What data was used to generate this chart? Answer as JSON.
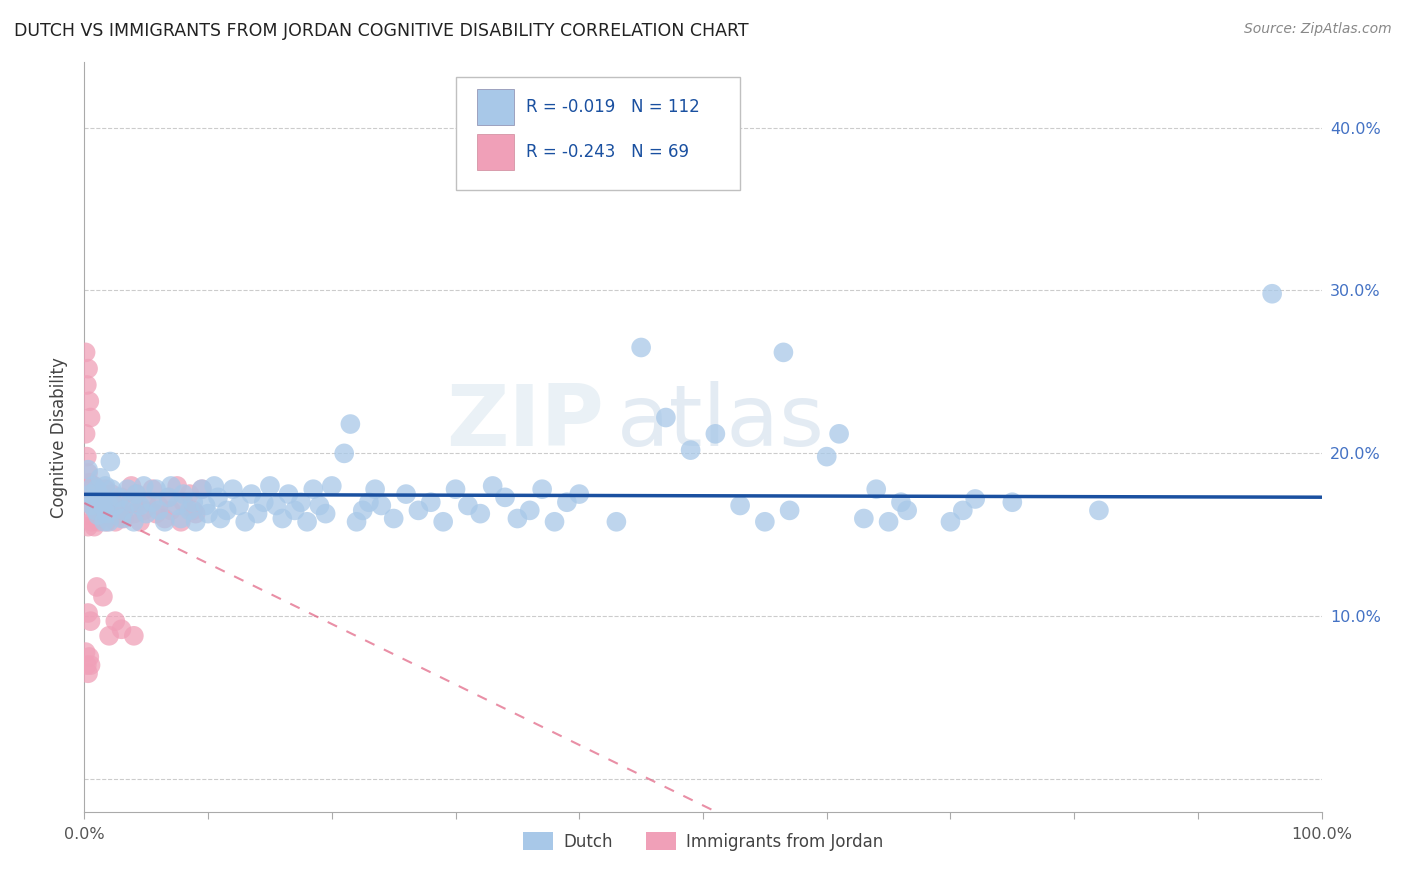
{
  "title": "DUTCH VS IMMIGRANTS FROM JORDAN COGNITIVE DISABILITY CORRELATION CHART",
  "source": "Source: ZipAtlas.com",
  "ylabel": "Cognitive Disability",
  "xlim": [
    0.0,
    1.0
  ],
  "ylim": [
    -0.02,
    0.44
  ],
  "yticks": [
    0.0,
    0.1,
    0.2,
    0.3,
    0.4
  ],
  "ytick_labels": [
    "",
    "10.0%",
    "20.0%",
    "30.0%",
    "40.0%"
  ],
  "xticks": [
    0.0,
    0.1,
    0.2,
    0.3,
    0.4,
    0.5,
    0.6,
    0.7,
    0.8,
    0.9,
    1.0
  ],
  "xtick_labels": [
    "0.0%",
    "",
    "",
    "",
    "",
    "",
    "",
    "",
    "",
    "",
    "100.0%"
  ],
  "dutch_color": "#a8c8e8",
  "jordan_color": "#f0a0b8",
  "dutch_line_color": "#1a50a0",
  "jordan_line_color": "#e06080",
  "legend_dutch_label": "Dutch",
  "legend_jordan_label": "Immigrants from Jordan",
  "R_dutch": -0.019,
  "N_dutch": 112,
  "R_jordan": -0.243,
  "N_jordan": 69,
  "watermark": "ZIPatlas",
  "dutch_points": [
    [
      0.003,
      0.19
    ],
    [
      0.005,
      0.175
    ],
    [
      0.006,
      0.168
    ],
    [
      0.007,
      0.18
    ],
    [
      0.008,
      0.172
    ],
    [
      0.009,
      0.165
    ],
    [
      0.01,
      0.178
    ],
    [
      0.011,
      0.162
    ],
    [
      0.012,
      0.17
    ],
    [
      0.013,
      0.185
    ],
    [
      0.014,
      0.173
    ],
    [
      0.015,
      0.168
    ],
    [
      0.016,
      0.158
    ],
    [
      0.017,
      0.18
    ],
    [
      0.018,
      0.163
    ],
    [
      0.019,
      0.17
    ],
    [
      0.02,
      0.158
    ],
    [
      0.021,
      0.195
    ],
    [
      0.022,
      0.178
    ],
    [
      0.025,
      0.168
    ],
    [
      0.028,
      0.173
    ],
    [
      0.03,
      0.16
    ],
    [
      0.032,
      0.165
    ],
    [
      0.035,
      0.178
    ],
    [
      0.038,
      0.17
    ],
    [
      0.04,
      0.158
    ],
    [
      0.042,
      0.175
    ],
    [
      0.045,
      0.168
    ],
    [
      0.048,
      0.18
    ],
    [
      0.05,
      0.163
    ],
    [
      0.055,
      0.17
    ],
    [
      0.058,
      0.178
    ],
    [
      0.06,
      0.165
    ],
    [
      0.065,
      0.158
    ],
    [
      0.068,
      0.173
    ],
    [
      0.07,
      0.18
    ],
    [
      0.075,
      0.168
    ],
    [
      0.078,
      0.16
    ],
    [
      0.08,
      0.175
    ],
    [
      0.085,
      0.165
    ],
    [
      0.088,
      0.17
    ],
    [
      0.09,
      0.158
    ],
    [
      0.095,
      0.178
    ],
    [
      0.098,
      0.168
    ],
    [
      0.1,
      0.163
    ],
    [
      0.105,
      0.18
    ],
    [
      0.108,
      0.173
    ],
    [
      0.11,
      0.16
    ],
    [
      0.115,
      0.165
    ],
    [
      0.12,
      0.178
    ],
    [
      0.125,
      0.168
    ],
    [
      0.13,
      0.158
    ],
    [
      0.135,
      0.175
    ],
    [
      0.14,
      0.163
    ],
    [
      0.145,
      0.17
    ],
    [
      0.15,
      0.18
    ],
    [
      0.155,
      0.168
    ],
    [
      0.16,
      0.16
    ],
    [
      0.165,
      0.175
    ],
    [
      0.17,
      0.165
    ],
    [
      0.175,
      0.17
    ],
    [
      0.18,
      0.158
    ],
    [
      0.185,
      0.178
    ],
    [
      0.19,
      0.168
    ],
    [
      0.195,
      0.163
    ],
    [
      0.2,
      0.18
    ],
    [
      0.21,
      0.2
    ],
    [
      0.215,
      0.218
    ],
    [
      0.22,
      0.158
    ],
    [
      0.225,
      0.165
    ],
    [
      0.23,
      0.17
    ],
    [
      0.235,
      0.178
    ],
    [
      0.24,
      0.168
    ],
    [
      0.25,
      0.16
    ],
    [
      0.26,
      0.175
    ],
    [
      0.27,
      0.165
    ],
    [
      0.28,
      0.17
    ],
    [
      0.29,
      0.158
    ],
    [
      0.3,
      0.178
    ],
    [
      0.31,
      0.168
    ],
    [
      0.32,
      0.163
    ],
    [
      0.33,
      0.18
    ],
    [
      0.34,
      0.173
    ],
    [
      0.35,
      0.16
    ],
    [
      0.36,
      0.165
    ],
    [
      0.37,
      0.178
    ],
    [
      0.38,
      0.158
    ],
    [
      0.39,
      0.17
    ],
    [
      0.4,
      0.175
    ],
    [
      0.43,
      0.158
    ],
    [
      0.45,
      0.265
    ],
    [
      0.47,
      0.222
    ],
    [
      0.49,
      0.202
    ],
    [
      0.51,
      0.212
    ],
    [
      0.53,
      0.168
    ],
    [
      0.55,
      0.158
    ],
    [
      0.565,
      0.262
    ],
    [
      0.57,
      0.165
    ],
    [
      0.6,
      0.198
    ],
    [
      0.61,
      0.212
    ],
    [
      0.63,
      0.16
    ],
    [
      0.64,
      0.178
    ],
    [
      0.65,
      0.158
    ],
    [
      0.66,
      0.17
    ],
    [
      0.665,
      0.165
    ],
    [
      0.7,
      0.158
    ],
    [
      0.71,
      0.165
    ],
    [
      0.72,
      0.172
    ],
    [
      0.75,
      0.17
    ],
    [
      0.82,
      0.165
    ],
    [
      0.96,
      0.298
    ]
  ],
  "jordan_points": [
    [
      0.001,
      0.262
    ],
    [
      0.002,
      0.242
    ],
    [
      0.003,
      0.252
    ],
    [
      0.004,
      0.232
    ],
    [
      0.005,
      0.222
    ],
    [
      0.001,
      0.212
    ],
    [
      0.002,
      0.198
    ],
    [
      0.003,
      0.188
    ],
    [
      0.004,
      0.182
    ],
    [
      0.005,
      0.178
    ],
    [
      0.006,
      0.172
    ],
    [
      0.007,
      0.168
    ],
    [
      0.008,
      0.18
    ],
    [
      0.009,
      0.17
    ],
    [
      0.01,
      0.165
    ],
    [
      0.011,
      0.158
    ],
    [
      0.012,
      0.162
    ],
    [
      0.013,
      0.16
    ],
    [
      0.014,
      0.167
    ],
    [
      0.015,
      0.175
    ],
    [
      0.016,
      0.17
    ],
    [
      0.017,
      0.178
    ],
    [
      0.018,
      0.158
    ],
    [
      0.019,
      0.165
    ],
    [
      0.02,
      0.172
    ],
    [
      0.021,
      0.162
    ],
    [
      0.022,
      0.175
    ],
    [
      0.023,
      0.168
    ],
    [
      0.025,
      0.158
    ],
    [
      0.028,
      0.165
    ],
    [
      0.03,
      0.173
    ],
    [
      0.032,
      0.16
    ],
    [
      0.035,
      0.168
    ],
    [
      0.038,
      0.18
    ],
    [
      0.04,
      0.163
    ],
    [
      0.042,
      0.175
    ],
    [
      0.045,
      0.158
    ],
    [
      0.048,
      0.165
    ],
    [
      0.05,
      0.17
    ],
    [
      0.055,
      0.178
    ],
    [
      0.058,
      0.163
    ],
    [
      0.06,
      0.168
    ],
    [
      0.065,
      0.16
    ],
    [
      0.068,
      0.173
    ],
    [
      0.07,
      0.165
    ],
    [
      0.075,
      0.18
    ],
    [
      0.078,
      0.158
    ],
    [
      0.08,
      0.17
    ],
    [
      0.085,
      0.175
    ],
    [
      0.088,
      0.165
    ],
    [
      0.09,
      0.163
    ],
    [
      0.095,
      0.178
    ],
    [
      0.01,
      0.118
    ],
    [
      0.015,
      0.112
    ],
    [
      0.003,
      0.102
    ],
    [
      0.005,
      0.097
    ],
    [
      0.02,
      0.088
    ],
    [
      0.025,
      0.097
    ],
    [
      0.03,
      0.092
    ],
    [
      0.04,
      0.088
    ],
    [
      0.001,
      0.078
    ],
    [
      0.002,
      0.07
    ],
    [
      0.003,
      0.065
    ],
    [
      0.004,
      0.075
    ],
    [
      0.005,
      0.07
    ],
    [
      0.003,
      0.155
    ],
    [
      0.004,
      0.162
    ],
    [
      0.006,
      0.158
    ],
    [
      0.007,
      0.168
    ],
    [
      0.008,
      0.155
    ]
  ]
}
